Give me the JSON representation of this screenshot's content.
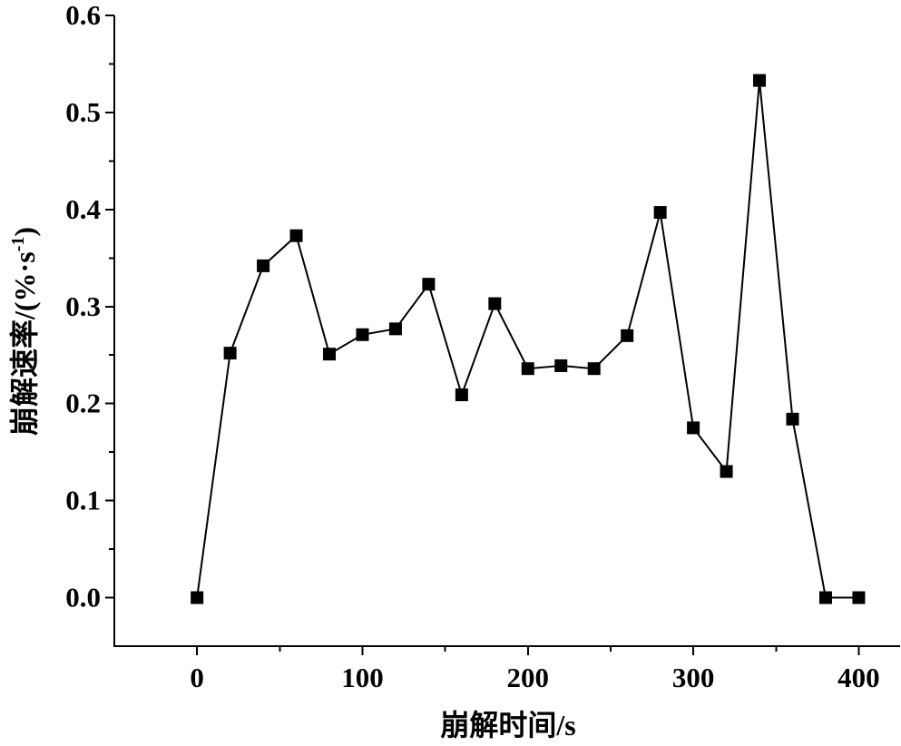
{
  "chart_data": {
    "type": "line",
    "x": [
      0,
      20,
      40,
      60,
      80,
      100,
      120,
      140,
      160,
      180,
      200,
      220,
      240,
      260,
      280,
      300,
      320,
      340,
      360,
      380,
      400
    ],
    "series": [
      {
        "values": [
          0.0,
          0.252,
          0.342,
          0.373,
          0.251,
          0.271,
          0.277,
          0.323,
          0.209,
          0.303,
          0.236,
          0.239,
          0.236,
          0.27,
          0.397,
          0.175,
          0.13,
          0.533,
          0.184,
          0.0,
          0.0
        ],
        "marker": "square",
        "color": "#000000"
      }
    ],
    "xlabel": "崩解时间/s",
    "ylabel": {
      "main": "崩解速率/(%·s",
      "superscript": "-1",
      "close": ")"
    },
    "xlim": [
      -50,
      425
    ],
    "ylim": [
      -0.05,
      0.6
    ],
    "xticks": [
      0,
      100,
      200,
      300,
      400
    ],
    "xtick_labels": [
      "0",
      "100",
      "200",
      "300",
      "400"
    ],
    "x_minor_ticks": [
      50,
      150,
      250,
      350
    ],
    "yticks": [
      0.0,
      0.1,
      0.2,
      0.3,
      0.4,
      0.5,
      0.6
    ],
    "ytick_labels": [
      "0.0",
      "0.1",
      "0.2",
      "0.3",
      "0.4",
      "0.5",
      "0.6"
    ],
    "y_minor_ticks": [
      0.05,
      0.15,
      0.25,
      0.35,
      0.45,
      0.55
    ],
    "grid": false
  }
}
